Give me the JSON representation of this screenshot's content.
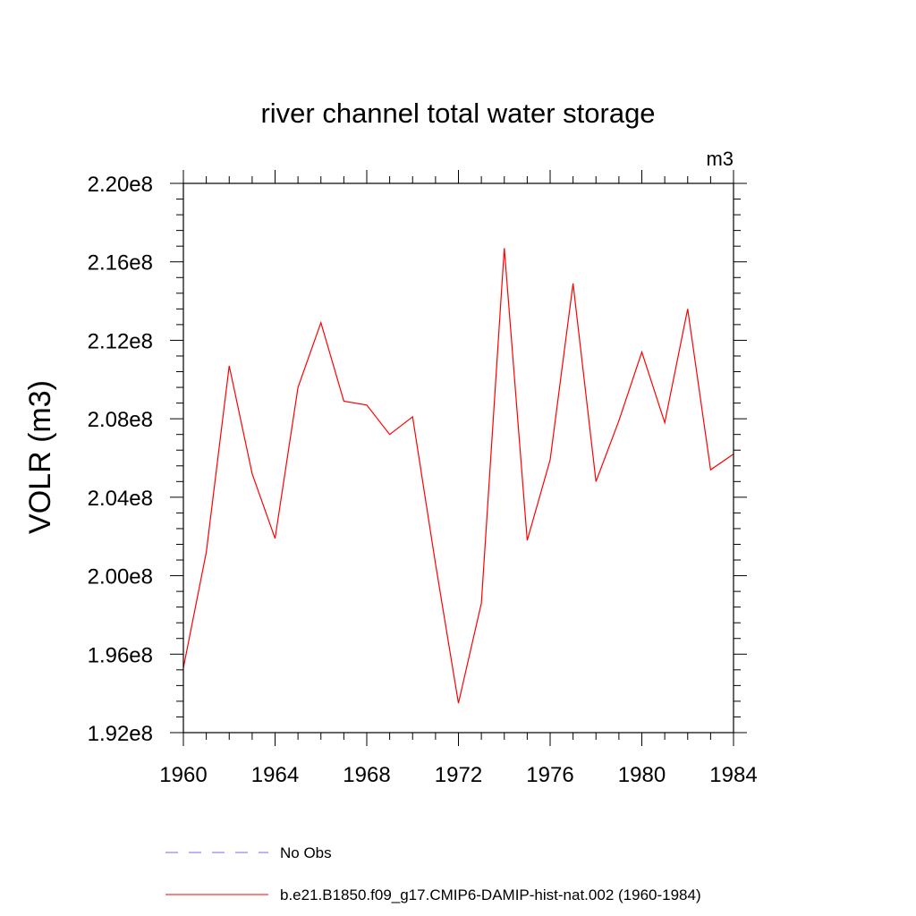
{
  "chart_data": {
    "type": "line",
    "title": "river channel total water storage",
    "units": "m3",
    "ylabel": "VOLR  (m3)",
    "xlabel": "",
    "xlim": [
      1960,
      1984
    ],
    "ylim": [
      192000000,
      220000000
    ],
    "x_ticks": [
      1960,
      1964,
      1968,
      1972,
      1976,
      1980,
      1984
    ],
    "x_tick_labels": [
      "1960",
      "1964",
      "1968",
      "1972",
      "1976",
      "1980",
      "1984"
    ],
    "y_ticks": [
      192000000,
      196000000,
      200000000,
      204000000,
      208000000,
      212000000,
      216000000,
      220000000
    ],
    "y_tick_labels": [
      "1.92e8",
      "1.96e8",
      "2.00e8",
      "2.04e8",
      "2.08e8",
      "2.12e8",
      "2.16e8",
      "2.20e8"
    ],
    "grid": false,
    "legend_position": "bottom",
    "series": [
      {
        "name": "No Obs",
        "color": "#7b68ee",
        "dash": "dashed",
        "x": [],
        "values": []
      },
      {
        "name": "b.e21.B1850.f09_g17.CMIP6-DAMIP-hist-nat.002 (1960-1984)",
        "color": "#ff0000",
        "dash": "solid",
        "x": [
          1960,
          1961,
          1962,
          1963,
          1964,
          1965,
          1966,
          1967,
          1968,
          1969,
          1970,
          1971,
          1972,
          1973,
          1974,
          1975,
          1976,
          1977,
          1978,
          1979,
          1980,
          1981,
          1982,
          1983,
          1984
        ],
        "values": [
          195300000,
          201200000,
          210700000,
          205200000,
          201900000,
          209600000,
          212900000,
          208900000,
          208700000,
          207200000,
          208100000,
          200600000,
          193500000,
          198600000,
          216700000,
          201800000,
          205900000,
          214900000,
          204800000,
          207900000,
          211400000,
          207800000,
          213600000,
          205400000,
          206200000
        ]
      }
    ]
  }
}
